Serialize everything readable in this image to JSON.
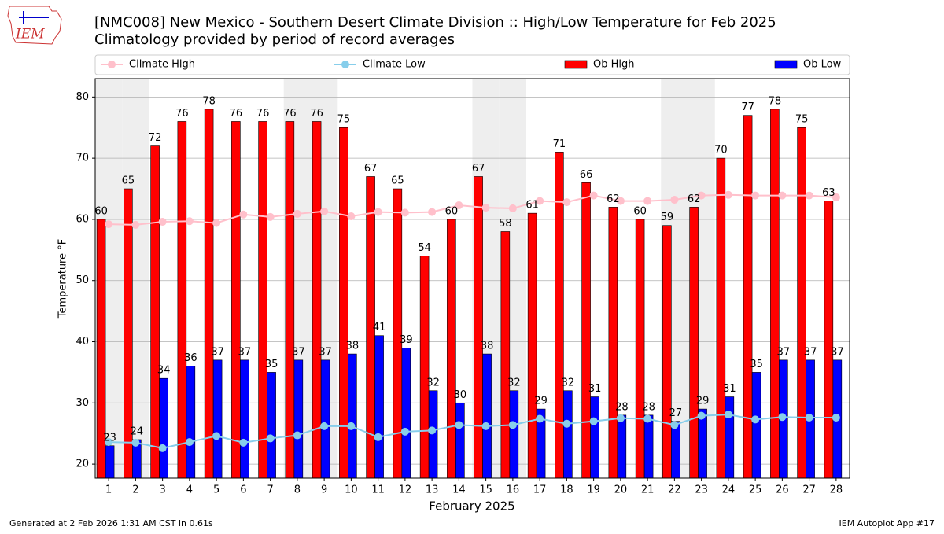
{
  "logo_text": "IEM",
  "chart_data": {
    "type": "bar",
    "title": "[NMC008] New Mexico - Southern Desert Climate Division :: High/Low Temperature for Feb 2025",
    "subtitle": "Climatology provided by period of record averages",
    "x_label": "February 2025",
    "y_label": "Temperature °F",
    "x": [
      1,
      2,
      3,
      4,
      5,
      6,
      7,
      8,
      9,
      10,
      11,
      12,
      13,
      14,
      15,
      16,
      17,
      18,
      19,
      20,
      21,
      22,
      23,
      24,
      25,
      26,
      27,
      28
    ],
    "xlim": [
      0.5,
      28.5
    ],
    "xticks": [
      1,
      2,
      3,
      4,
      5,
      6,
      7,
      8,
      9,
      10,
      11,
      12,
      13,
      14,
      15,
      16,
      17,
      18,
      19,
      20,
      21,
      22,
      23,
      24,
      25,
      26,
      27,
      28
    ],
    "ylim": [
      17.7,
      83
    ],
    "yticks": [
      20,
      30,
      40,
      50,
      60,
      70,
      80
    ],
    "grid": true,
    "shaded_days": [
      1,
      2,
      8,
      9,
      15,
      16,
      22,
      23
    ],
    "legend": "top",
    "series": [
      {
        "name": "Climate High",
        "type": "line",
        "color": "#ffc0cb",
        "values": [
          59.2,
          59.1,
          59.6,
          59.7,
          59.4,
          60.8,
          60.4,
          60.9,
          61.3,
          60.5,
          61.2,
          61.1,
          61.2,
          62.3,
          61.9,
          61.8,
          63.0,
          62.8,
          63.9,
          63.0,
          63.0,
          63.2,
          63.9,
          64.0,
          63.9,
          63.9,
          63.9,
          63.6
        ]
      },
      {
        "name": "Climate Low",
        "type": "line",
        "color": "#87ceeb",
        "values": [
          23.6,
          23.5,
          22.6,
          23.6,
          24.6,
          23.5,
          24.2,
          24.7,
          26.2,
          26.2,
          24.4,
          25.3,
          25.5,
          26.4,
          26.2,
          26.4,
          27.4,
          26.6,
          27.0,
          27.5,
          27.4,
          26.4,
          27.9,
          28.1,
          27.3,
          27.7,
          27.6,
          27.6
        ]
      },
      {
        "name": "Ob High",
        "type": "bar",
        "color": "#ff0000",
        "values": [
          60,
          65,
          72,
          76,
          78,
          76,
          76,
          76,
          76,
          75,
          67,
          65,
          54,
          60,
          67,
          58,
          61,
          71,
          66,
          62,
          60,
          59,
          62,
          70,
          77,
          78,
          75,
          63
        ]
      },
      {
        "name": "Ob Low",
        "type": "bar",
        "color": "#0000ff",
        "values": [
          23,
          24,
          34,
          36,
          37,
          37,
          35,
          37,
          37,
          38,
          41,
          39,
          32,
          30,
          38,
          32,
          29,
          32,
          31,
          28,
          28,
          27,
          29,
          31,
          35,
          37,
          37,
          37
        ]
      }
    ],
    "footer_left": "Generated at 2 Feb 2026 1:31 AM CST in 0.61s",
    "footer_right": "IEM Autoplot App #17"
  }
}
